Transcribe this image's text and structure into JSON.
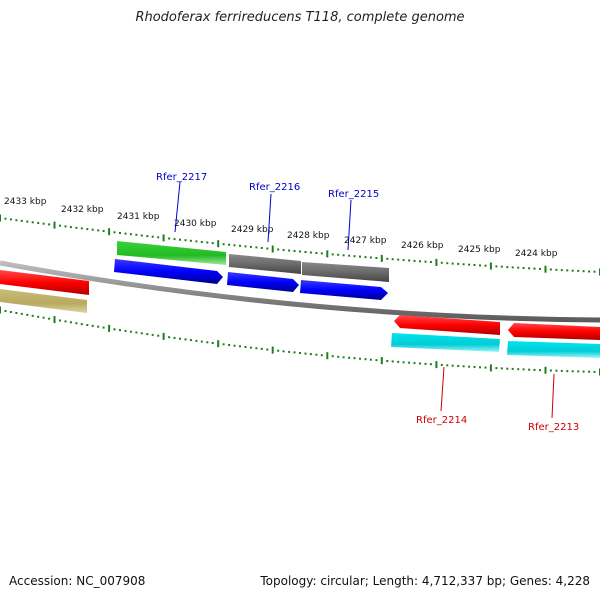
{
  "header": {
    "title": "Rhodoferax ferrireducens T118, complete genome"
  },
  "footer": {
    "accession": "Accession: NC_007908",
    "summary": "Topology: circular; Length: 4,712,337 bp; Genes: 4,228"
  },
  "ruler": {
    "labels": [
      "2433 kbp",
      "2432 kbp",
      "2431 kbp",
      "2430 kbp",
      "2429 kbp",
      "2428 kbp",
      "2427 kbp",
      "2426 kbp",
      "2425 kbp",
      "2424 kbp"
    ]
  },
  "genes": {
    "forward": [
      {
        "label": "Rfer_2217",
        "color": "#0000cc"
      },
      {
        "label": "Rfer_2216",
        "color": "#0000cc"
      },
      {
        "label": "Rfer_2215",
        "color": "#0000cc"
      }
    ],
    "reverse": [
      {
        "label": "Rfer_2214",
        "color": "#cc0000"
      },
      {
        "label": "Rfer_2213",
        "color": "#cc0000"
      }
    ]
  },
  "colors": {
    "cds_forward": "#0000ff",
    "cds_reverse": "#ff0000",
    "rna_forward": "#2ecc40",
    "rna_reverse": "#00e5ee",
    "other_feature": "#777777",
    "olive_feature": "#c2b46a",
    "backbone": "#8a8a8a",
    "tick": "#1e7d1e"
  }
}
